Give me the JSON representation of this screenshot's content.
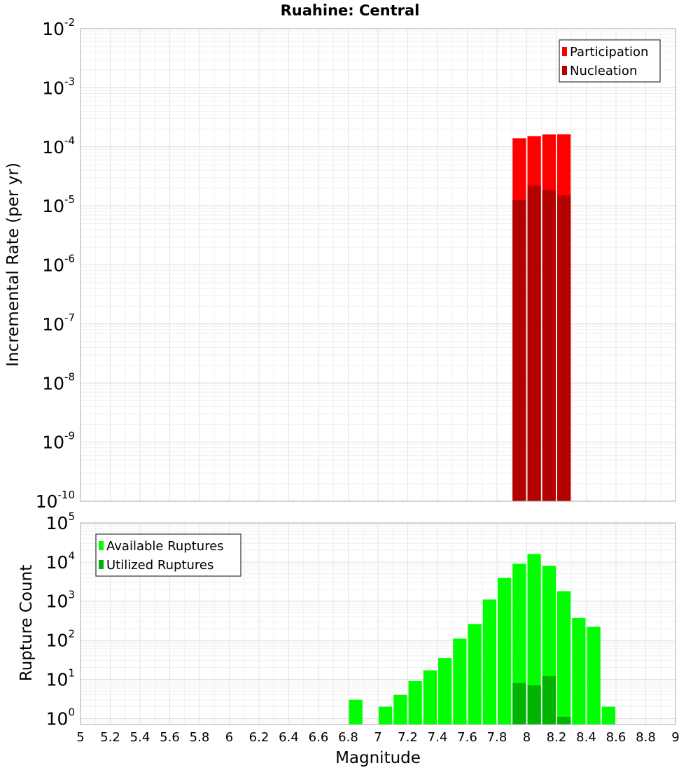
{
  "chart_data": [
    {
      "type": "bar",
      "title": "Ruahine: Central",
      "xlabel": "",
      "ylabel": "Incremental Rate (per yr)",
      "yscale": "log",
      "xlim": [
        5,
        9
      ],
      "ylim": [
        1e-10,
        0.01
      ],
      "bin_width": 0.1,
      "ytick_exponents": [
        -2,
        -3,
        -4,
        -5,
        -6,
        -7,
        -8,
        -9,
        -10
      ],
      "grid": true,
      "legend_position": "top-right",
      "series": [
        {
          "name": "Participation",
          "color": "#ff0000",
          "x": [
            7.95,
            8.05,
            8.15,
            8.25
          ],
          "values": [
            0.00014,
            0.000152,
            0.000162,
            0.000163
          ]
        },
        {
          "name": "Nucleation",
          "color": "#b30000",
          "x": [
            7.95,
            8.05,
            8.15,
            8.25
          ],
          "values": [
            1.25e-05,
            2.2e-05,
            1.85e-05,
            1.5e-05
          ]
        }
      ]
    },
    {
      "type": "bar",
      "title": "",
      "xlabel": "Magnitude",
      "ylabel": "Rupture Count",
      "yscale": "log",
      "xlim": [
        5,
        9
      ],
      "ylim": [
        0.7,
        100000
      ],
      "bin_width": 0.1,
      "xticks": [
        "5",
        "5.2",
        "5.4",
        "5.6",
        "5.8",
        "6",
        "6.2",
        "6.4",
        "6.6",
        "6.8",
        "7",
        "7.2",
        "7.4",
        "7.6",
        "7.8",
        "8",
        "8.2",
        "8.4",
        "8.6",
        "8.8",
        "9"
      ],
      "ytick_exponents": [
        5,
        4,
        3,
        2,
        1,
        0
      ],
      "grid": true,
      "legend_position": "top-left",
      "series": [
        {
          "name": "Available Ruptures",
          "color": "#00ff00",
          "x": [
            6.85,
            7.05,
            7.15,
            7.25,
            7.35,
            7.45,
            7.55,
            7.65,
            7.75,
            7.85,
            7.95,
            8.05,
            8.15,
            8.25,
            8.35,
            8.45,
            8.55
          ],
          "values": [
            3,
            2,
            4,
            9,
            17,
            35,
            110,
            260,
            1100,
            3900,
            9000,
            16000,
            8000,
            1800,
            370,
            220,
            2
          ]
        },
        {
          "name": "Utilized Ruptures",
          "color": "#00b300",
          "x": [
            7.95,
            8.05,
            8.15,
            8.25
          ],
          "values": [
            8,
            7,
            12,
            1.1
          ]
        }
      ]
    }
  ]
}
